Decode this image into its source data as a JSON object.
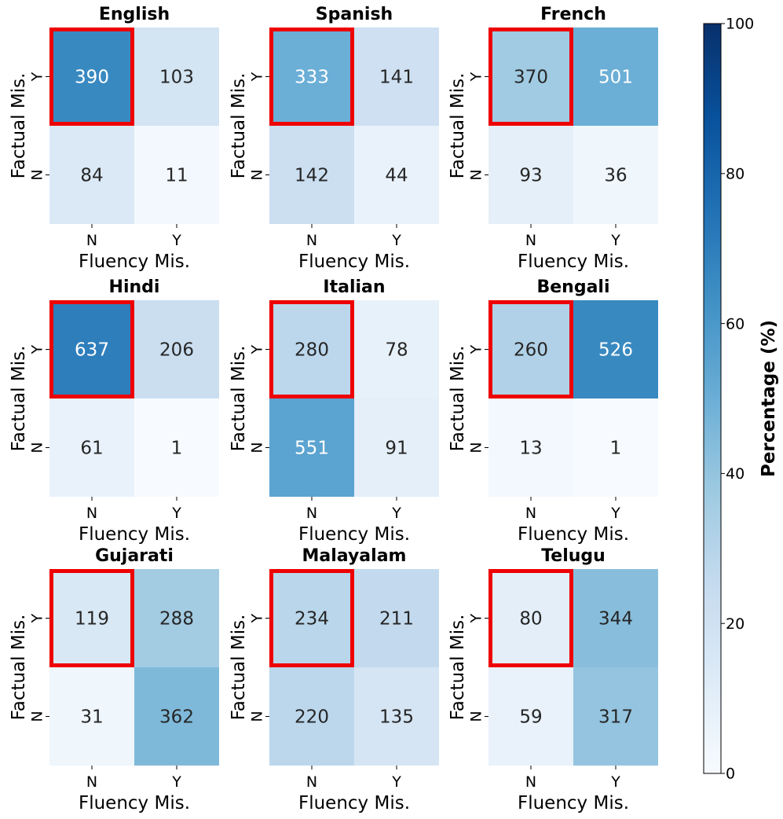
{
  "chart_data": {
    "type": "heatmap",
    "xlabel": "Fluency Mis.",
    "ylabel": "Factual Mis.",
    "x_tick_labels": [
      "N",
      "Y"
    ],
    "y_tick_labels": [
      "Y",
      "N"
    ],
    "highlight": "Factual Mis. = Y, Fluency Mis. = N (red box)",
    "colormap": "Blues",
    "colorbar": {
      "label": "Percentage (%)",
      "min": 0,
      "max": 100,
      "ticks": [
        0,
        20,
        40,
        60,
        80,
        100
      ]
    },
    "panels": [
      {
        "title": "English",
        "values": [
          [
            390,
            103
          ],
          [
            84,
            11
          ]
        ],
        "percent": [
          [
            66,
            18
          ],
          [
            14,
            2
          ]
        ]
      },
      {
        "title": "Spanish",
        "values": [
          [
            333,
            141
          ],
          [
            142,
            44
          ]
        ],
        "percent": [
          [
            50,
            21
          ],
          [
            22,
            7
          ]
        ]
      },
      {
        "title": "French",
        "values": [
          [
            370,
            501
          ],
          [
            93,
            36
          ]
        ],
        "percent": [
          [
            37,
            50
          ],
          [
            9,
            4
          ]
        ]
      },
      {
        "title": "Hindi",
        "values": [
          [
            637,
            206
          ],
          [
            61,
            1
          ]
        ],
        "percent": [
          [
            70,
            23
          ],
          [
            7,
            0
          ]
        ]
      },
      {
        "title": "Italian",
        "values": [
          [
            280,
            78
          ],
          [
            551,
            91
          ]
        ],
        "percent": [
          [
            28,
            8
          ],
          [
            55,
            9
          ]
        ]
      },
      {
        "title": "Bengali",
        "values": [
          [
            260,
            526
          ],
          [
            13,
            1
          ]
        ],
        "percent": [
          [
            32,
            66
          ],
          [
            2,
            0
          ]
        ]
      },
      {
        "title": "Gujarati",
        "values": [
          [
            119,
            288
          ],
          [
            31,
            362
          ]
        ],
        "percent": [
          [
            15,
            36
          ],
          [
            4,
            45
          ]
        ]
      },
      {
        "title": "Malayalam",
        "values": [
          [
            234,
            211
          ],
          [
            220,
            135
          ]
        ],
        "percent": [
          [
            29,
            26
          ],
          [
            28,
            17
          ]
        ]
      },
      {
        "title": "Telugu",
        "values": [
          [
            80,
            344
          ],
          [
            59,
            317
          ]
        ],
        "percent": [
          [
            10,
            43
          ],
          [
            7,
            40
          ]
        ]
      }
    ]
  }
}
